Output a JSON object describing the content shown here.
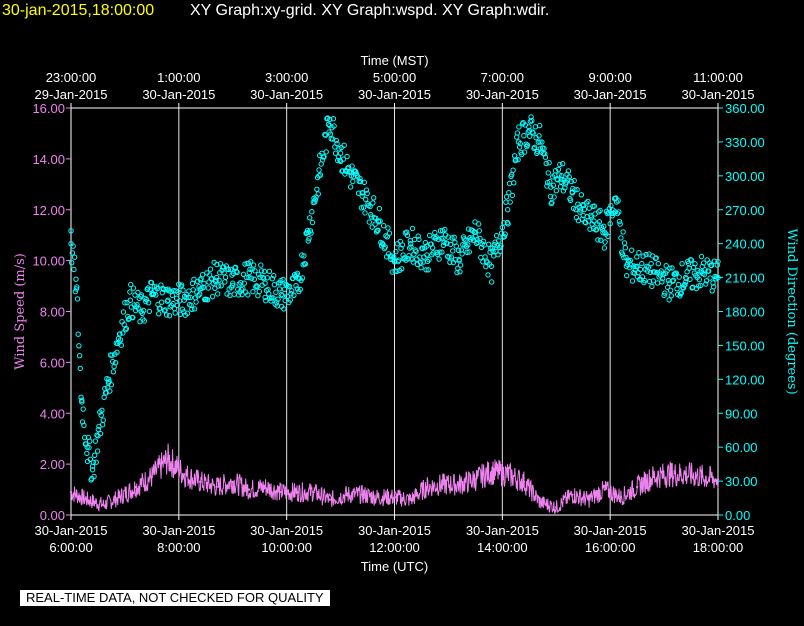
{
  "header": {
    "datetime": "30-jan-2015,18:00:00",
    "graphs": "XY Graph:xy-grid.  XY Graph:wspd.  XY Graph:wdir."
  },
  "disclaimer": "REAL-TIME DATA, NOT CHECKED FOR QUALITY",
  "colors": {
    "background": "#000000",
    "grid": "#ffffff",
    "axis_text": "#ffffff",
    "wind_speed": "#ee82ee",
    "wind_direction": "#00ffff",
    "title_date": "#ffff00"
  },
  "chart_data": {
    "type": "scatter",
    "xlabel": "Time (UTC)",
    "x2label": "Time (MST)",
    "ylabel_left": "Wind Speed (m/s)",
    "ylabel_right": "Wind Direction (degrees)",
    "x_range_hours_utc": [
      6,
      18
    ],
    "ylim_left": [
      0,
      16
    ],
    "ylim_right": [
      0,
      360
    ],
    "grid": "vertical",
    "x_ticks_bottom": [
      {
        "h": 6,
        "date": "30-Jan-2015",
        "time": "6:00:00"
      },
      {
        "h": 8,
        "date": "30-Jan-2015",
        "time": "8:00:00"
      },
      {
        "h": 10,
        "date": "30-Jan-2015",
        "time": "10:00:00"
      },
      {
        "h": 12,
        "date": "30-Jan-2015",
        "time": "12:00:00"
      },
      {
        "h": 14,
        "date": "30-Jan-2015",
        "time": "14:00:00"
      },
      {
        "h": 16,
        "date": "30-Jan-2015",
        "time": "16:00:00"
      },
      {
        "h": 18,
        "date": "30-Jan-2015",
        "time": "18:00:00"
      }
    ],
    "x_ticks_top": [
      {
        "h": 6,
        "time": "23:00:00",
        "date": "29-Jan-2015"
      },
      {
        "h": 8,
        "time": "1:00:00",
        "date": "30-Jan-2015"
      },
      {
        "h": 10,
        "time": "3:00:00",
        "date": "30-Jan-2015"
      },
      {
        "h": 12,
        "time": "5:00:00",
        "date": "30-Jan-2015"
      },
      {
        "h": 14,
        "time": "7:00:00",
        "date": "30-Jan-2015"
      },
      {
        "h": 16,
        "time": "9:00:00",
        "date": "30-Jan-2015"
      },
      {
        "h": 18,
        "time": "11:00:00",
        "date": "30-Jan-2015"
      }
    ],
    "y_ticks_left": [
      "0.00",
      "2.00",
      "4.00",
      "6.00",
      "8.00",
      "10.00",
      "12.00",
      "14.00",
      "16.00"
    ],
    "y_ticks_right": [
      "0.00",
      "30.00",
      "60.00",
      "90.00",
      "120.00",
      "150.00",
      "180.00",
      "210.00",
      "240.00",
      "270.00",
      "300.00",
      "330.00",
      "360.00"
    ],
    "series": [
      {
        "name": "wspd",
        "unit": "m/s",
        "x": [
          6.0,
          6.3,
          6.6,
          6.9,
          7.2,
          7.5,
          7.8,
          8.1,
          8.4,
          8.7,
          9.0,
          9.3,
          9.6,
          9.9,
          10.2,
          10.5,
          10.8,
          11.1,
          11.4,
          11.7,
          12.0,
          12.3,
          12.6,
          12.9,
          13.2,
          13.5,
          13.8,
          14.1,
          14.4,
          14.7,
          15.0,
          15.3,
          15.6,
          15.9,
          16.2,
          16.5,
          16.8,
          17.1,
          17.4,
          17.7,
          18.0
        ],
        "y": [
          0.9,
          0.6,
          0.4,
          0.7,
          1.1,
          1.5,
          2.2,
          1.6,
          1.3,
          1.1,
          1.3,
          1.0,
          1.1,
          0.9,
          0.9,
          0.9,
          0.6,
          0.8,
          0.8,
          0.7,
          0.7,
          0.6,
          1.1,
          1.2,
          1.2,
          1.4,
          1.7,
          1.6,
          1.3,
          0.5,
          0.3,
          0.8,
          0.6,
          1.0,
          0.7,
          1.1,
          1.5,
          1.6,
          1.6,
          1.5,
          1.4
        ]
      },
      {
        "name": "wdir",
        "unit": "degrees",
        "x": [
          6.0,
          6.1,
          6.2,
          6.3,
          6.4,
          6.5,
          6.7,
          6.9,
          7.1,
          7.3,
          7.5,
          7.8,
          8.1,
          8.4,
          8.7,
          9.0,
          9.3,
          9.6,
          9.9,
          10.2,
          10.4,
          10.6,
          10.8,
          11.0,
          11.2,
          11.4,
          11.7,
          12.0,
          12.3,
          12.6,
          12.9,
          13.2,
          13.5,
          13.8,
          14.1,
          14.3,
          14.5,
          14.7,
          14.9,
          15.1,
          15.3,
          15.5,
          15.7,
          15.9,
          16.1,
          16.3,
          16.5,
          16.8,
          17.1,
          17.4,
          17.7,
          18.0
        ],
        "y": [
          240,
          200,
          100,
          60,
          40,
          70,
          120,
          160,
          190,
          180,
          195,
          190,
          190,
          200,
          210,
          205,
          210,
          205,
          195,
          200,
          250,
          300,
          350,
          320,
          300,
          285,
          260,
          225,
          240,
          230,
          245,
          225,
          250,
          220,
          270,
          330,
          340,
          330,
          290,
          300,
          285,
          265,
          260,
          250,
          280,
          220,
          220,
          215,
          205,
          210,
          215,
          210
        ]
      }
    ],
    "annotations": [
      {
        "series": "wdir",
        "h_start": 7.0,
        "h_end": 7.0,
        "note": ""
      }
    ]
  }
}
